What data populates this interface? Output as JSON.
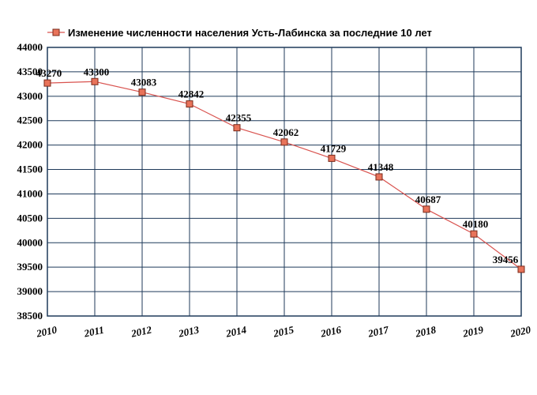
{
  "chart_data": {
    "type": "line",
    "title": "",
    "xlabel": "",
    "ylabel": "",
    "x": [
      2010,
      2011,
      2012,
      2013,
      2014,
      2015,
      2016,
      2017,
      2018,
      2019,
      2020
    ],
    "series": [
      {
        "name": "Изменение численности населения Усть-Лабинска за последние 10 лет",
        "values": [
          43270,
          43300,
          43083,
          42842,
          42355,
          42062,
          41729,
          41348,
          40687,
          40180,
          39456
        ]
      }
    ],
    "data_labels": [
      "43270",
      "43300",
      "43083",
      "42842",
      "42355",
      "42062",
      "41729",
      "41348",
      "40687",
      "40180",
      "39456"
    ],
    "x_tick_labels": [
      "2010",
      "2011",
      "2012",
      "2013",
      "2014",
      "2015",
      "2016",
      "2017",
      "2018",
      "2019",
      "2020"
    ],
    "y_tick_labels": [
      "38500",
      "39000",
      "39500",
      "40000",
      "40500",
      "41000",
      "41500",
      "42000",
      "42500",
      "43000",
      "43500",
      "44000"
    ],
    "y_ticks": [
      38500,
      39000,
      39500,
      40000,
      40500,
      41000,
      41500,
      42000,
      42500,
      43000,
      43500,
      44000
    ],
    "ylim": [
      38500,
      44000
    ],
    "xlim": [
      2010,
      2020
    ],
    "grid": true,
    "legend_position": "top",
    "colors": {
      "line": "#d9534f",
      "marker_fill": "#e8735a",
      "marker_stroke": "#7a2a1a",
      "grid": "#1f3a5a"
    }
  }
}
